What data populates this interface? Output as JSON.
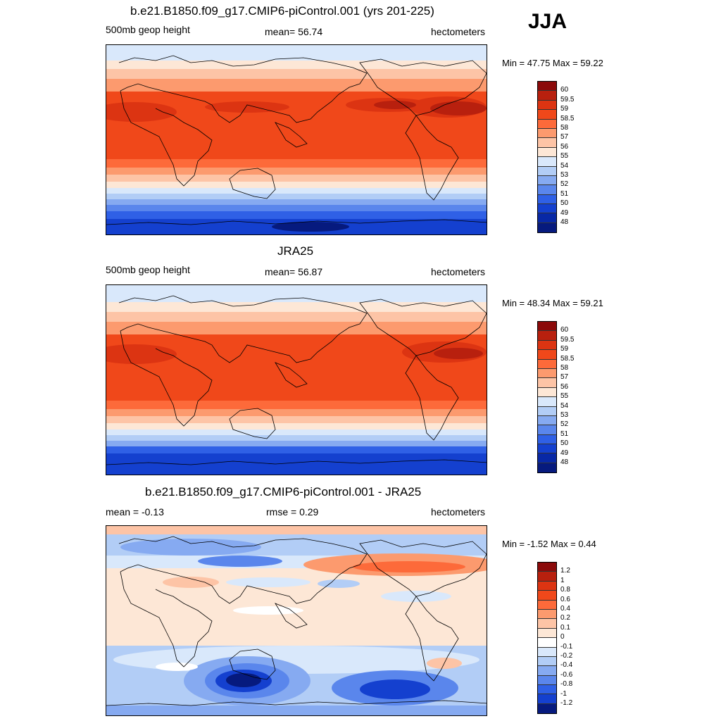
{
  "season": "JJA",
  "panels": [
    {
      "title": "b.e21.B1850.f09_g17.CMIP6-piControl.001 (yrs 201-225)",
      "left": "500mb geop height",
      "center": "mean=  56.74",
      "right": "hectometers",
      "minmax": "Min =  47.75 Max =  59.22",
      "colorbar": {
        "labels": [
          "60",
          "59.5",
          "59",
          "58.5",
          "58",
          "57",
          "56",
          "55",
          "54",
          "53",
          "52",
          "51",
          "50",
          "49",
          "48"
        ],
        "colors": [
          "#8b0a0a",
          "#b8200e",
          "#dc3412",
          "#f0481a",
          "#fd6a3a",
          "#fc9a6e",
          "#fdc4a6",
          "#fde7d6",
          "#d9e8fb",
          "#b2cdf6",
          "#86aaf1",
          "#5a86ec",
          "#2f60e6",
          "#1440cf",
          "#0828a6",
          "#061a7e"
        ]
      }
    },
    {
      "title": "JRA25",
      "left": "500mb geop height",
      "center": "mean=  56.87",
      "right": "hectometers",
      "minmax": "Min =  48.34 Max =  59.21",
      "colorbar": {
        "labels": [
          "60",
          "59.5",
          "59",
          "58.5",
          "58",
          "57",
          "56",
          "55",
          "54",
          "53",
          "52",
          "51",
          "50",
          "49",
          "48"
        ],
        "colors": [
          "#8b0a0a",
          "#b8200e",
          "#dc3412",
          "#f0481a",
          "#fd6a3a",
          "#fc9a6e",
          "#fdc4a6",
          "#fde7d6",
          "#d9e8fb",
          "#b2cdf6",
          "#86aaf1",
          "#5a86ec",
          "#2f60e6",
          "#1440cf",
          "#0828a6",
          "#061a7e"
        ]
      }
    },
    {
      "title": "b.e21.B1850.f09_g17.CMIP6-piControl.001 - JRA25",
      "left": "mean =  -0.13",
      "center": "rmse =   0.29",
      "right": "hectometers",
      "minmax": "Min =  -1.52 Max =   0.44",
      "colorbar": {
        "labels": [
          "1.2",
          "1",
          "0.8",
          "0.6",
          "0.4",
          "0.2",
          "0.1",
          "0",
          "-0.1",
          "-0.2",
          "-0.4",
          "-0.6",
          "-0.8",
          "-1",
          "-1.2"
        ],
        "colors": [
          "#8b0a0a",
          "#b8200e",
          "#dc3412",
          "#f0481a",
          "#fd6a3a",
          "#fc9a6e",
          "#fdc4a6",
          "#fde7d6",
          "#ffffff",
          "#d9e8fb",
          "#b2cdf6",
          "#86aaf1",
          "#5a86ec",
          "#2f60e6",
          "#1440cf",
          "#061a7e"
        ]
      }
    }
  ]
}
